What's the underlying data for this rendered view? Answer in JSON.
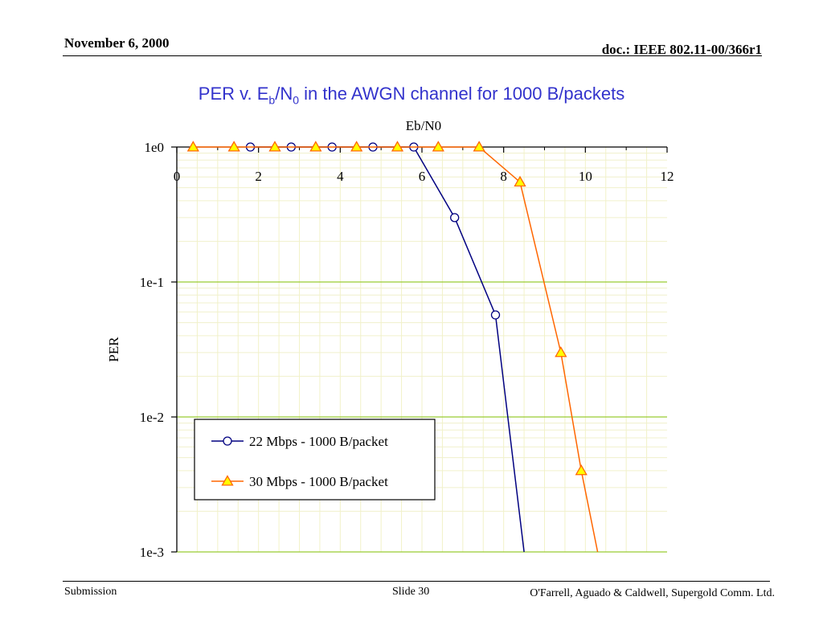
{
  "slide": {
    "date": "November 6, 2000",
    "doc_id": "doc.: IEEE 802.11-00/366r1",
    "title_main": "PER v. E",
    "title_sub_b": "b",
    "title_mid": "/N",
    "title_sub_0": "0",
    "title_rest": " in the AWGN channel for 1000 B/packets",
    "footer_left": "Submission",
    "footer_center": "Slide 30",
    "footer_right": "O'Farrell, Aguado & Caldwell, Supergold Comm. Ltd."
  },
  "chart_data": {
    "type": "line",
    "title": "PER v. Eb/N0 in the AWGN channel for 1000 B/packets",
    "xlabel": "Eb/N0",
    "ylabel": "PER",
    "x_axis_position": "top",
    "xlim": [
      0,
      12
    ],
    "ylim": [
      0.001,
      1
    ],
    "y_scale": "log",
    "x_ticks": [
      "0",
      "2",
      "4",
      "6",
      "8",
      "10",
      "12"
    ],
    "y_ticks": [
      "1e0",
      "1e-1",
      "1e-2",
      "1e-3"
    ],
    "grid": true,
    "legend_position": "bottom-left",
    "series": [
      {
        "name": "22 Mbps - 1000 B/packet",
        "color": "#000080",
        "marker": "circle",
        "points": [
          [
            1.8,
            1
          ],
          [
            2.8,
            1
          ],
          [
            3.8,
            1
          ],
          [
            4.8,
            1
          ],
          [
            5.8,
            1
          ],
          [
            6.8,
            0.3
          ],
          [
            7.8,
            0.057
          ],
          [
            8.5,
            0.001
          ]
        ],
        "marker_count": 7
      },
      {
        "name": "30 Mbps - 1000 B/packet",
        "color": "#ff6600",
        "marker": "triangle",
        "points": [
          [
            0.4,
            1
          ],
          [
            1.4,
            1
          ],
          [
            2.4,
            1
          ],
          [
            3.4,
            1
          ],
          [
            4.4,
            1
          ],
          [
            5.4,
            1
          ],
          [
            6.4,
            1
          ],
          [
            7.4,
            1
          ],
          [
            8.4,
            0.55
          ],
          [
            9.4,
            0.03
          ],
          [
            9.9,
            0.004
          ],
          [
            10.3,
            0.001
          ]
        ],
        "marker_count": 11
      }
    ]
  }
}
